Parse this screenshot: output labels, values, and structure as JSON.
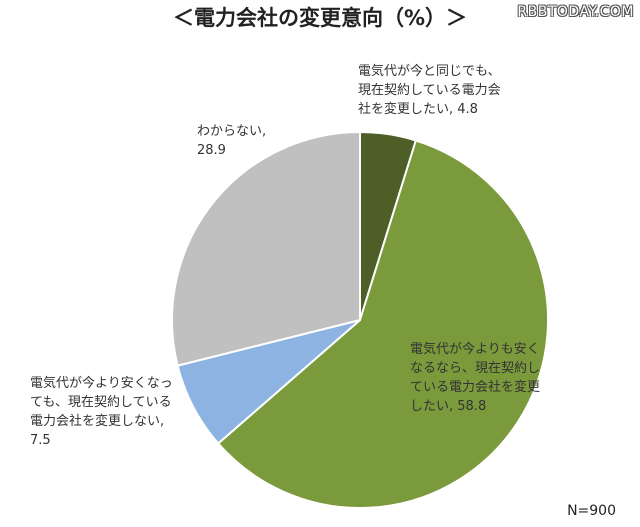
{
  "watermark": "RBBTODAY.COM",
  "chart_data": {
    "type": "pie",
    "title": "＜電力会社の変更意向（%）＞",
    "note": "N=900",
    "slices": [
      {
        "label": "電気代が今と同じでも、\n現在契約している電力会\n社を変更したい, 4.8",
        "value": 4.8,
        "color": "#4d5e26"
      },
      {
        "label": "電気代が今よりも安く\nなるなら、現在契約し\nている電力会社を変更\nしたい, 58.8",
        "value": 58.8,
        "color": "#7a9a3c"
      },
      {
        "label": "電気代が今より安くなっ\nても、現在契約している\n電力会社を変更しない,\n7.5",
        "value": 7.5,
        "color": "#8db3e2"
      },
      {
        "label": "わからない,\n28.9",
        "value": 28.9,
        "color": "#c0c0c0"
      }
    ]
  }
}
